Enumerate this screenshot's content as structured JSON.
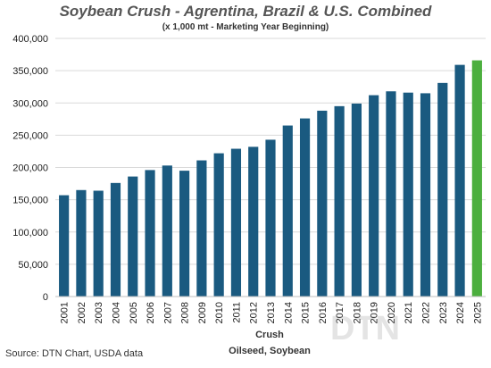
{
  "chart_data": {
    "type": "bar",
    "title": "Soybean Crush - Agrentina, Brazil & U.S. Combined",
    "subtitle": "(x 1,000 mt - Marketing Year Beginning)",
    "xlabel": "Crush",
    "xlabel2": "Oilseed, Soybean",
    "ylabel": "",
    "ylim": [
      0,
      400000
    ],
    "yticks": [
      "0",
      "50,000",
      "100,000",
      "150,000",
      "200,000",
      "250,000",
      "300,000",
      "350,000",
      "400,000"
    ],
    "categories": [
      "2001",
      "2002",
      "2003",
      "2004",
      "2005",
      "2006",
      "2007",
      "2008",
      "2009",
      "2010",
      "2011",
      "2012",
      "2013",
      "2014",
      "2015",
      "2016",
      "2017",
      "2018",
      "2019",
      "2020",
      "2021",
      "2022",
      "2023",
      "2024",
      "2025"
    ],
    "values": [
      157000,
      165000,
      164000,
      176000,
      186000,
      196000,
      203000,
      195000,
      211000,
      222000,
      229000,
      232000,
      243000,
      265000,
      276000,
      288000,
      295000,
      299000,
      312000,
      318000,
      316000,
      315000,
      331000,
      359000,
      366000
    ],
    "bar_color": "#1a5a80",
    "highlight_color": "#4caf3e",
    "highlight_category": "2025",
    "grid": true,
    "gridline_color": "#d9d9d9"
  },
  "source": "Source: DTN Chart, USDA data",
  "watermark": "DTN"
}
